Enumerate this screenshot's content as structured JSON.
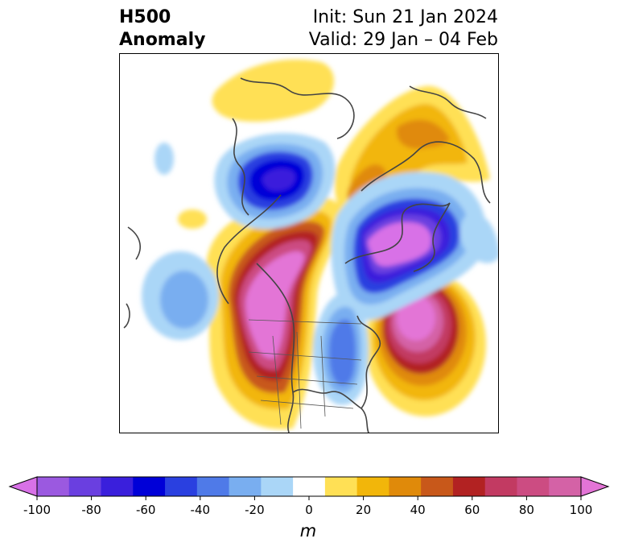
{
  "title": {
    "left_line1": "H500",
    "left_line2": "Anomaly",
    "right_line1": "Init: Sun 21 Jan 2024",
    "right_line2": "Valid: 29 Jan – 04 Feb"
  },
  "map": {
    "region": "North America / North Pacific / Arctic",
    "features": [
      {
        "name": "positive-anomaly-western-north-america",
        "sign": "positive",
        "peak_m": 100
      },
      {
        "name": "positive-anomaly-north-atlantic",
        "sign": "positive",
        "peak_m": 100
      },
      {
        "name": "positive-anomaly-greenland-north-atlantic",
        "sign": "positive",
        "peak_m": 40
      },
      {
        "name": "negative-anomaly-greenland-baffin",
        "sign": "negative",
        "peak_m": -100
      },
      {
        "name": "negative-anomaly-eastern-united-states",
        "sign": "negative",
        "peak_m": -50
      },
      {
        "name": "negative-anomaly-siberia-arctic",
        "sign": "negative",
        "peak_m": -70
      },
      {
        "name": "negative-anomaly-north-pacific",
        "sign": "negative",
        "peak_m": -30
      }
    ]
  },
  "colorbar": {
    "unit": "m",
    "min": -100,
    "max": 100,
    "ticks": [
      "-100",
      "-80",
      "-60",
      "-40",
      "-20",
      "0",
      "20",
      "40",
      "60",
      "80",
      "100"
    ],
    "colors": [
      "#d871e7",
      "#9b59e0",
      "#6a3fe0",
      "#3a1fdc",
      "#0000d8",
      "#2a40e0",
      "#4f7ae8",
      "#79aef0",
      "#aad6f7",
      "#ffffff",
      "#ffe055",
      "#f2b60a",
      "#e08a0a",
      "#c8581a",
      "#b22222",
      "#c23a62",
      "#cc4c82",
      "#d462a6",
      "#e374d6"
    ],
    "extend": "both"
  }
}
